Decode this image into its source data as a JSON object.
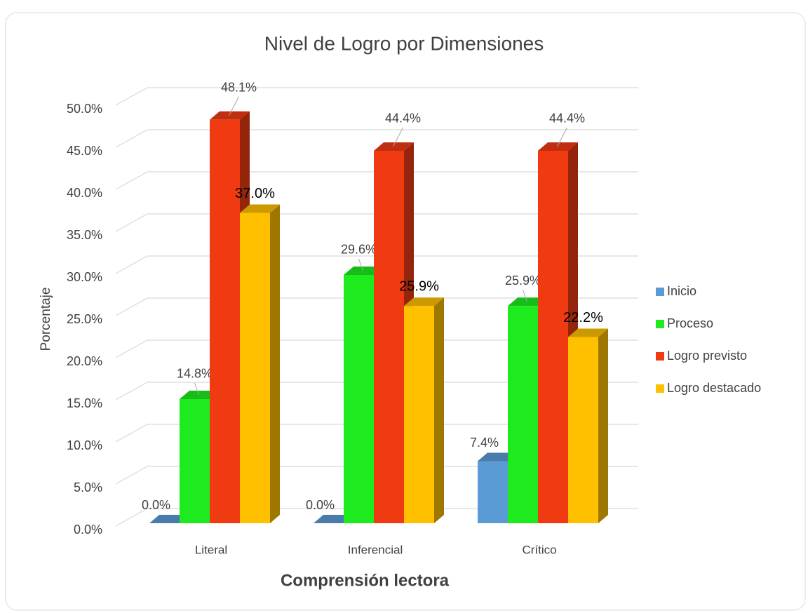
{
  "chart_data": {
    "type": "bar3d",
    "title": "Nivel de Logro por Dimensiones",
    "x_label": "Comprensión lectora",
    "y_label": "Porcentaje",
    "categories": [
      "Literal",
      "Inferencial",
      "Crítico"
    ],
    "series": [
      {
        "name": "Inicio",
        "color": "#5b9bd5",
        "values": [
          0,
          0,
          7.4
        ],
        "value_labels": [
          "0.0%",
          "0.0%",
          "7.4%"
        ]
      },
      {
        "name": "Proceso",
        "color": "#1eeb1e",
        "values": [
          14.8,
          29.6,
          25.9
        ],
        "value_labels": [
          "14.8%",
          "29.6%",
          "25.9%"
        ]
      },
      {
        "name": "Logro previsto",
        "color": "#ef3a12",
        "values": [
          48.1,
          44.4,
          44.4
        ],
        "value_labels": [
          "48.1%",
          "44.4%",
          "44.4%"
        ]
      },
      {
        "name": "Logro destacado",
        "color": "#ffc000",
        "values": [
          37.0,
          25.9,
          22.2
        ],
        "value_labels": [
          "37.0%",
          "25.9%",
          "22.2%"
        ]
      }
    ],
    "ylim": [
      0,
      50
    ],
    "yticks": [
      {
        "value": 0,
        "label": "0.0%"
      },
      {
        "value": 5,
        "label": "5.0%"
      },
      {
        "value": 10,
        "label": "10.0%"
      },
      {
        "value": 15,
        "label": "15.0%"
      },
      {
        "value": 20,
        "label": "20.0%"
      },
      {
        "value": 25,
        "label": "25.0%"
      },
      {
        "value": 30,
        "label": "30.0%"
      },
      {
        "value": 35,
        "label": "35.0%"
      },
      {
        "value": 40,
        "label": "40.0%"
      },
      {
        "value": 45,
        "label": "45.0%"
      },
      {
        "value": 50,
        "label": "50.0%"
      }
    ],
    "grid": true,
    "legend": "right"
  }
}
